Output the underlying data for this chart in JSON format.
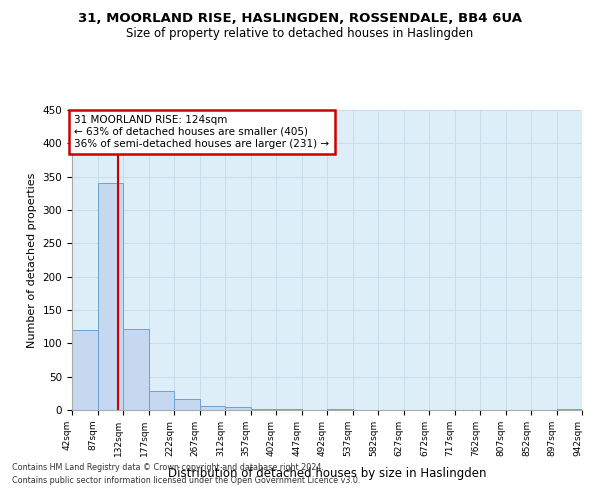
{
  "title1": "31, MOORLAND RISE, HASLINGDEN, ROSSENDALE, BB4 6UA",
  "title2": "Size of property relative to detached houses in Haslingden",
  "xlabel": "Distribution of detached houses by size in Haslingden",
  "ylabel": "Number of detached properties",
  "annotation_line1": "31 MOORLAND RISE: 124sqm",
  "annotation_line2": "← 63% of detached houses are smaller (405)",
  "annotation_line3": "36% of semi-detached houses are larger (231) →",
  "property_size": 124,
  "bin_edges": [
    42,
    87,
    132,
    177,
    222,
    267,
    312,
    357,
    402,
    447,
    492,
    537,
    582,
    627,
    672,
    717,
    762,
    807,
    852,
    897,
    942
  ],
  "bar_heights": [
    120,
    340,
    122,
    28,
    17,
    6,
    4,
    1,
    1,
    0,
    1,
    0,
    0,
    0,
    0,
    0,
    0,
    0,
    0,
    2
  ],
  "bar_color": "#c5d8ef",
  "bar_edge_color": "#6ba3d0",
  "grid_color": "#c8dcea",
  "vline_color": "#cc0000",
  "annotation_box_color": "#cc0000",
  "background_color": "#ddeef8",
  "ylim": [
    0,
    450
  ],
  "yticks": [
    0,
    50,
    100,
    150,
    200,
    250,
    300,
    350,
    400,
    450
  ],
  "footer1": "Contains HM Land Registry data © Crown copyright and database right 2024.",
  "footer2": "Contains public sector information licensed under the Open Government Licence v3.0."
}
